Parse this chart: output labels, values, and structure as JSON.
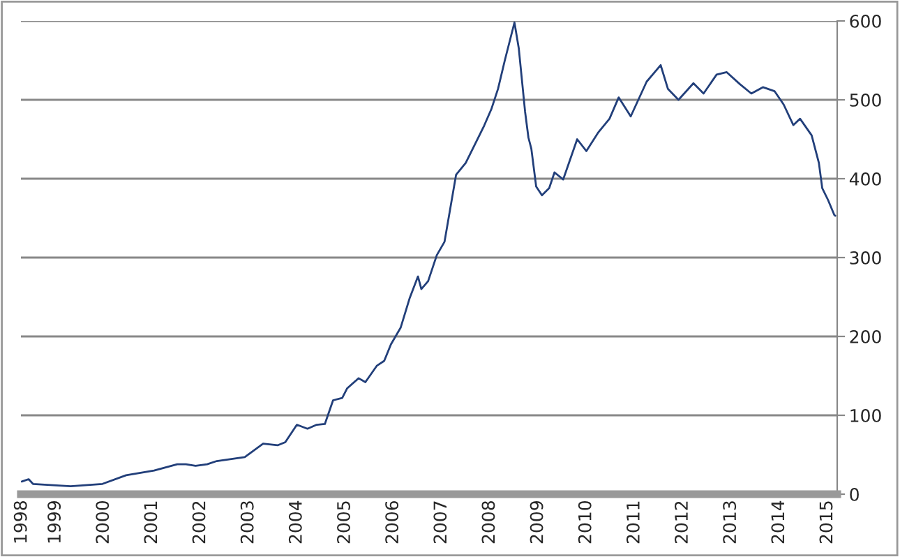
{
  "chart_data": {
    "type": "line",
    "series": [
      {
        "color": "#223f7a",
        "x": [
          1998.3,
          1998.44,
          1998.53,
          1999.31,
          1999.97,
          2000.46,
          2001.04,
          2001.52,
          2001.7,
          2001.9,
          2002.14,
          2002.34,
          2002.92,
          2003.3,
          2003.6,
          2003.76,
          2004.0,
          2004.22,
          2004.41,
          2004.58,
          2004.75,
          2004.94,
          2005.04,
          2005.28,
          2005.42,
          2005.66,
          2005.81,
          2005.95,
          2006.15,
          2006.34,
          2006.51,
          2006.58,
          2006.72,
          2006.9,
          2007.06,
          2007.3,
          2007.5,
          2007.88,
          2008.03,
          2008.17,
          2008.31,
          2008.51,
          2008.6,
          2008.73,
          2008.8,
          2008.86,
          2008.96,
          2009.08,
          2009.23,
          2009.34,
          2009.52,
          2009.81,
          2010.0,
          2010.24,
          2010.48,
          2010.67,
          2010.92,
          2011.25,
          2011.54,
          2011.69,
          2011.91,
          2012.22,
          2012.43,
          2012.7,
          2012.91,
          2013.18,
          2013.42,
          2013.66,
          2013.9,
          2014.09,
          2014.29,
          2014.43,
          2014.67,
          2014.82,
          2014.89,
          2015.01,
          2015.14,
          2015.16
        ],
        "values": [
          16,
          19,
          13,
          10,
          13,
          24,
          30,
          38,
          38,
          36,
          38,
          42,
          47,
          64,
          62,
          66,
          88,
          83,
          88,
          89,
          119,
          122,
          134,
          147,
          142,
          163,
          169,
          190,
          211,
          249,
          276,
          260,
          270,
          303,
          320,
          405,
          420,
          467,
          488,
          514,
          550,
          598,
          565,
          485,
          452,
          438,
          390,
          379,
          388,
          408,
          399,
          450,
          435,
          458,
          476,
          503,
          479,
          523,
          544,
          514,
          500,
          521,
          508,
          532,
          535,
          520,
          508,
          516,
          511,
          494,
          468,
          476,
          455,
          420,
          388,
          373,
          354,
          353
        ]
      }
    ],
    "xlim": [
      1998.28,
      2015.2
    ],
    "xticks": [
      {
        "value": 1998.3,
        "label": "1998"
      },
      1999,
      2000,
      2001,
      2002,
      2003,
      2004,
      2005,
      2006,
      2007,
      2008,
      2009,
      2010,
      2011,
      2012,
      2013,
      2014,
      2015
    ],
    "ylim": [
      0,
      600
    ],
    "yticks": [
      0,
      100,
      200,
      300,
      400,
      500,
      600
    ],
    "grid": "y",
    "marker": "none",
    "line_style": "solid"
  }
}
